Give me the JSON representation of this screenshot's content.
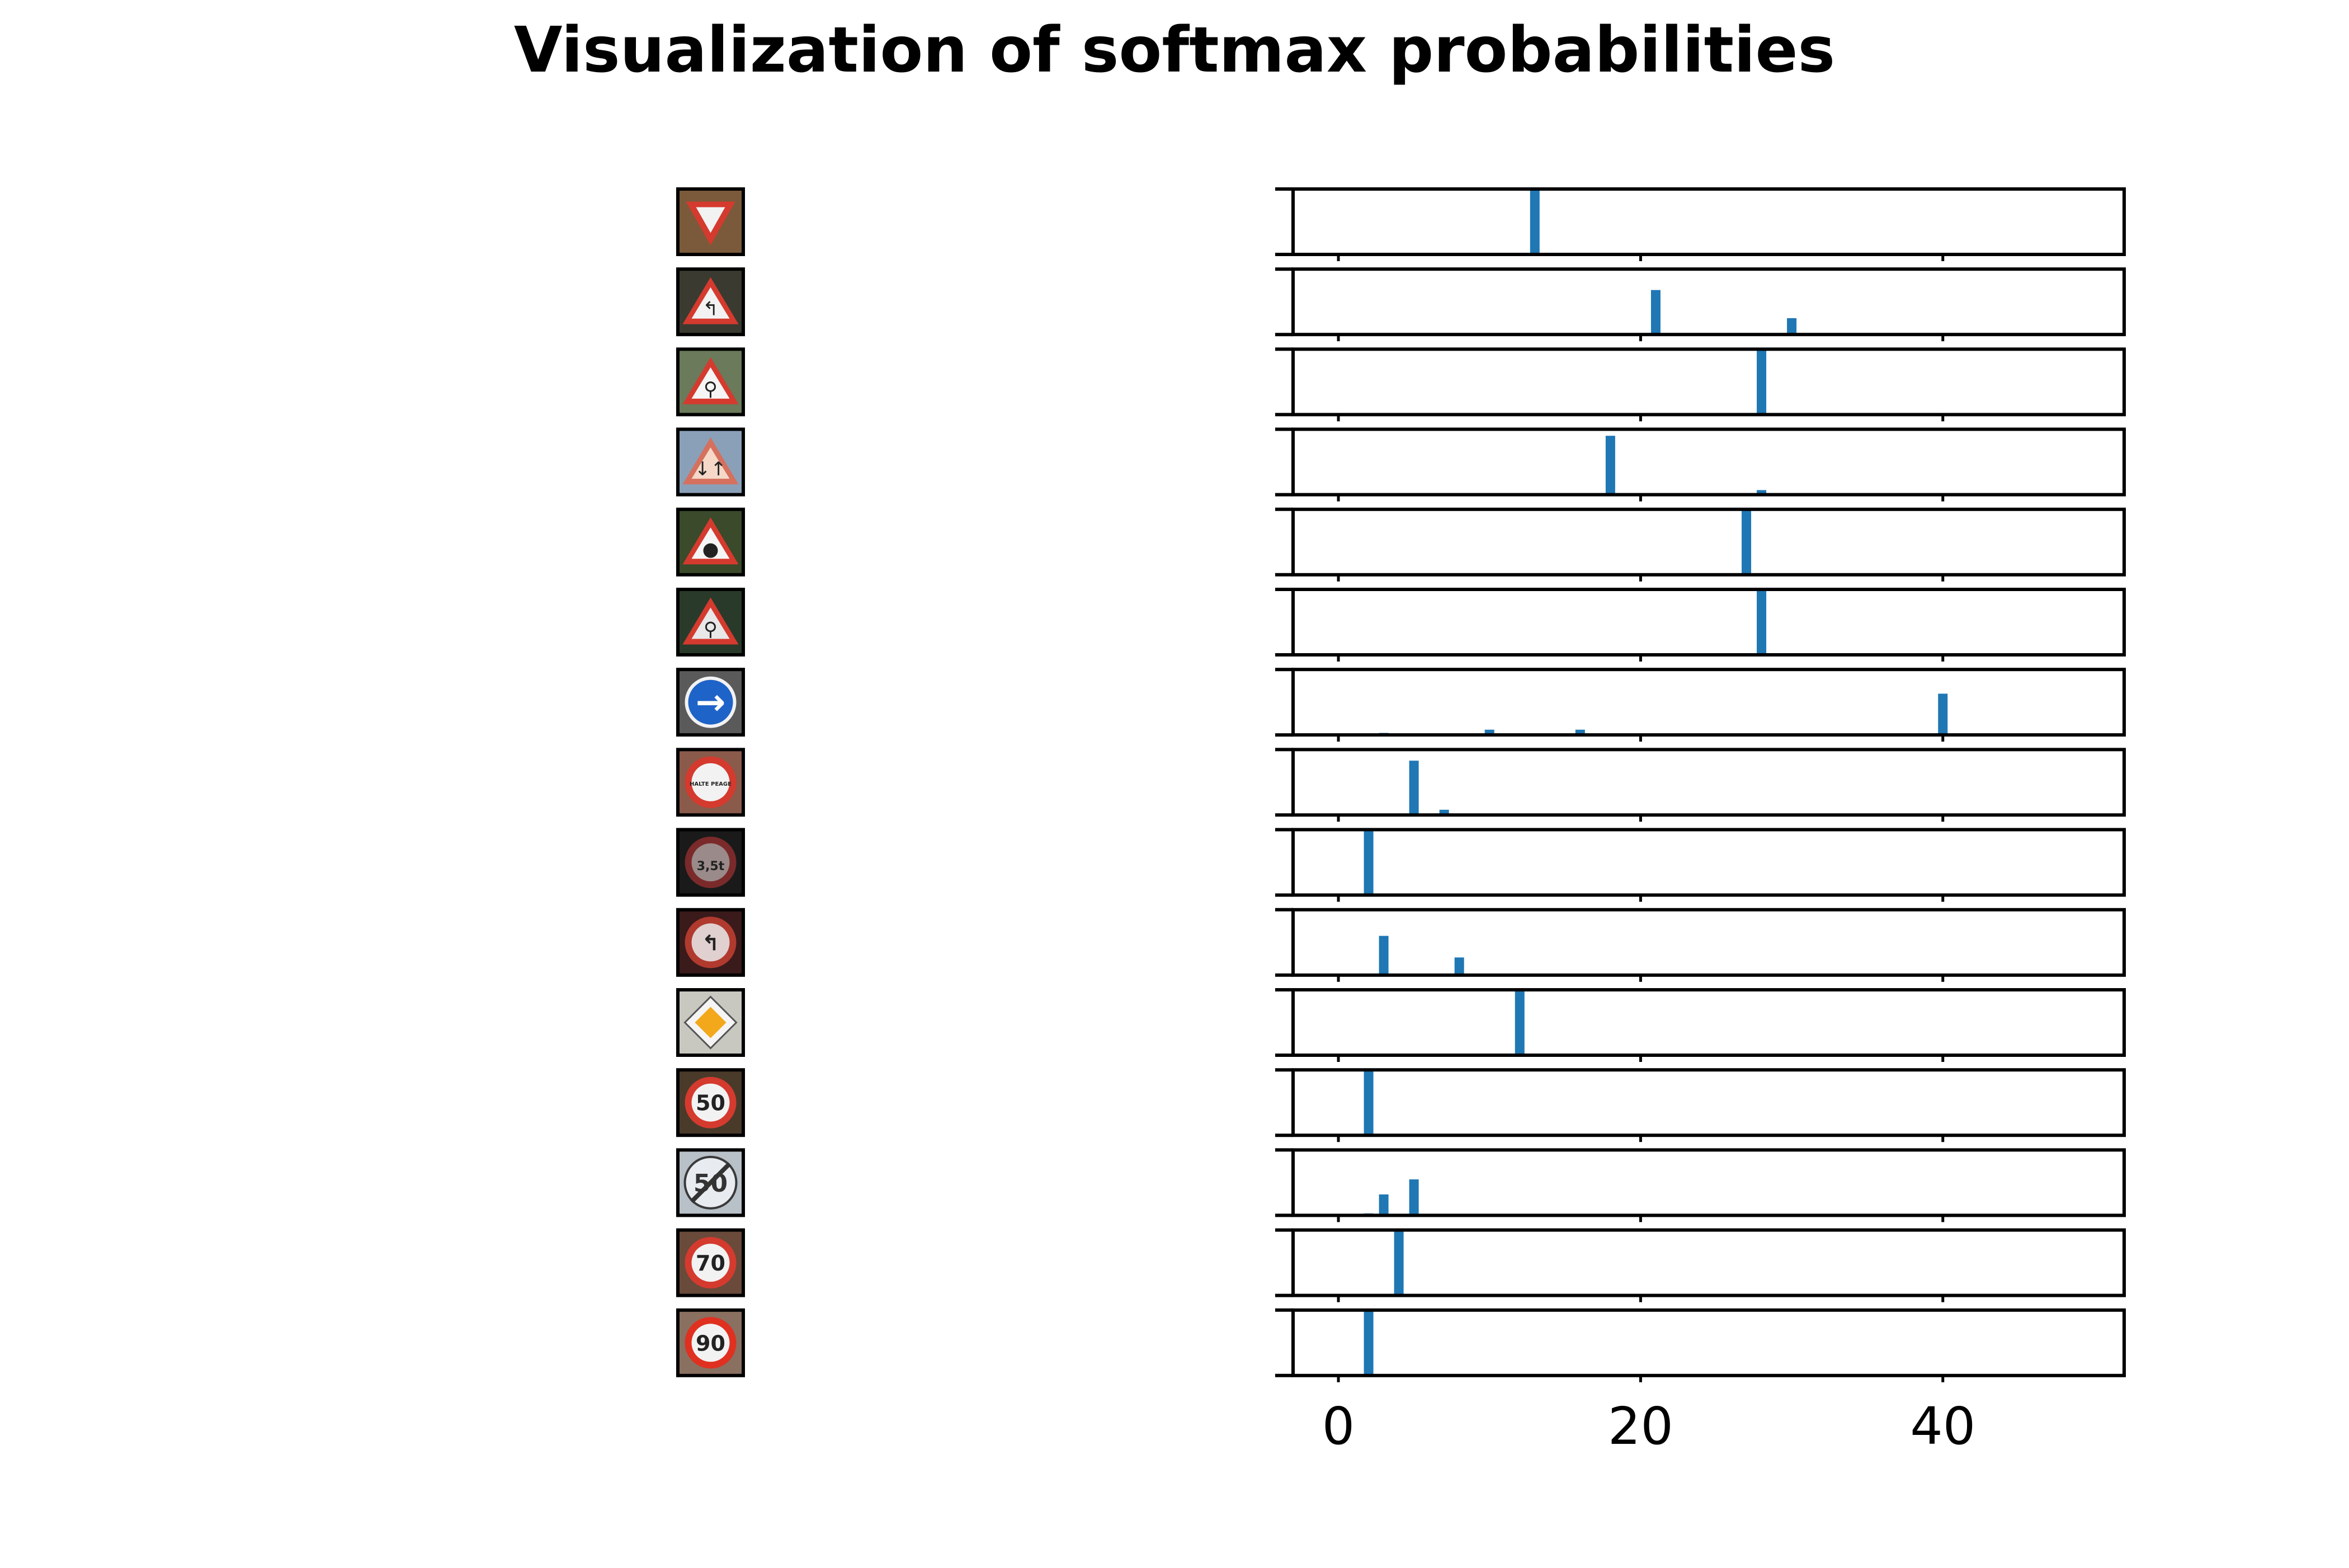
{
  "figure": {
    "title": "Visualization of softmax probabilities"
  },
  "chart_data": {
    "type": "bar",
    "title": "Visualization of softmax probabilities",
    "xlabel": "",
    "ylabel": "",
    "xlim": [
      -3,
      52
    ],
    "x_ticks": [
      0,
      20,
      40
    ],
    "x_tick_labels": [
      "0",
      "20",
      "40"
    ],
    "ylim": [
      0,
      1
    ],
    "grid": false,
    "legend": "none",
    "bar_color": "#1f77b4",
    "rows": [
      {
        "sign": "yield",
        "bars": [
          {
            "x": 13,
            "y": 1.0
          }
        ]
      },
      {
        "sign": "curve-left-warning",
        "bars": [
          {
            "x": 21,
            "y": 0.68
          },
          {
            "x": 30,
            "y": 0.25
          }
        ]
      },
      {
        "sign": "children-crossing-warning",
        "bars": [
          {
            "x": 28,
            "y": 1.0
          }
        ]
      },
      {
        "sign": "two-way-traffic-warning",
        "bars": [
          {
            "x": 18,
            "y": 0.9
          },
          {
            "x": 28,
            "y": 0.07
          }
        ]
      },
      {
        "sign": "traffic-signals-warning",
        "bars": [
          {
            "x": 27,
            "y": 1.0
          }
        ]
      },
      {
        "sign": "pedestrian-crossing-warning",
        "bars": [
          {
            "x": 28,
            "y": 1.0
          }
        ]
      },
      {
        "sign": "turn-right-ahead",
        "bars": [
          {
            "x": 40,
            "y": 0.63
          },
          {
            "x": 3,
            "y": 0.03
          },
          {
            "x": 10,
            "y": 0.08
          },
          {
            "x": 16,
            "y": 0.08
          }
        ]
      },
      {
        "sign": "halte-peage",
        "bars": [
          {
            "x": 5,
            "y": 0.83
          },
          {
            "x": 7,
            "y": 0.08
          }
        ]
      },
      {
        "sign": "weight-limit-3-5t",
        "bars": [
          {
            "x": 2,
            "y": 1.0
          }
        ]
      },
      {
        "sign": "no-left-turn",
        "bars": [
          {
            "x": 3,
            "y": 0.6
          },
          {
            "x": 8,
            "y": 0.27
          }
        ]
      },
      {
        "sign": "priority-road",
        "bars": [
          {
            "x": 12,
            "y": 1.0
          }
        ]
      },
      {
        "sign": "speed-limit-50",
        "bars": [
          {
            "x": 2,
            "y": 1.0
          }
        ]
      },
      {
        "sign": "end-speed-limit-50",
        "bars": [
          {
            "x": 3,
            "y": 0.32
          },
          {
            "x": 5,
            "y": 0.55
          },
          {
            "x": 2,
            "y": 0.03
          }
        ]
      },
      {
        "sign": "speed-limit-70",
        "bars": [
          {
            "x": 4,
            "y": 1.0
          }
        ]
      },
      {
        "sign": "speed-limit-90",
        "bars": [
          {
            "x": 2,
            "y": 1.0
          }
        ]
      }
    ]
  },
  "signs": [
    {
      "name": "yield-sign-icon",
      "shape": "inverted-triangle",
      "bg": "#7a5a3a",
      "fill": "#f2f2f2",
      "ring": "#d53a2e"
    },
    {
      "name": "curve-left-warning-sign-icon",
      "shape": "triangle",
      "bg": "#3a3a30",
      "fill": "#f2f2f2",
      "ring": "#d53a2e",
      "glyph": "↰"
    },
    {
      "name": "children-crossing-warning-sign-icon",
      "shape": "triangle",
      "bg": "#6a7a5a",
      "fill": "#f5f5f5",
      "ring": "#d53a2e",
      "glyph": "⚲"
    },
    {
      "name": "two-way-traffic-warning-sign-icon",
      "shape": "triangle",
      "bg": "#8aa0b8",
      "fill": "#f5d8c8",
      "ring": "#d5705e",
      "glyph": "↓↑"
    },
    {
      "name": "traffic-signals-warning-sign-icon",
      "shape": "triangle",
      "bg": "#3a4a2a",
      "fill": "#f5f5f5",
      "ring": "#d53a2e",
      "glyph": "●"
    },
    {
      "name": "pedestrian-crossing-warning-sign-icon",
      "shape": "triangle",
      "bg": "#2a3a2a",
      "fill": "#e8e8e8",
      "ring": "#d53a2e",
      "glyph": "⚲"
    },
    {
      "name": "turn-right-ahead-sign-icon",
      "shape": "blue-circle",
      "bg": "#5a5a5a",
      "fill": "#1e63c8",
      "ring": "#f2f2f2",
      "glyph": "→"
    },
    {
      "name": "halte-peage-sign-icon",
      "shape": "circle",
      "bg": "#8a5a4a",
      "fill": "#f2f2f2",
      "ring": "#d53a2e",
      "glyph": "HALTE PEAGE"
    },
    {
      "name": "weight-limit-sign-icon",
      "shape": "circle",
      "bg": "#1a1a1a",
      "fill": "#9a8a8a",
      "ring": "#7a2a2a",
      "glyph": "3,5t"
    },
    {
      "name": "no-left-turn-sign-icon",
      "shape": "circle",
      "bg": "#3a1a1a",
      "fill": "#e0d0d0",
      "ring": "#b03a2e",
      "glyph": "↰"
    },
    {
      "name": "priority-road-sign-icon",
      "shape": "diamond",
      "bg": "#c8c8c0",
      "fill": "#f2a81a",
      "ring": "#f5f5f5"
    },
    {
      "name": "speed-limit-50-sign-icon",
      "shape": "circle",
      "bg": "#4a3a2a",
      "fill": "#f2f2f2",
      "ring": "#d53a2e",
      "glyph": "50"
    },
    {
      "name": "end-speed-limit-50-sign-icon",
      "shape": "end-circle",
      "bg": "#b8c0c8",
      "fill": "#e8ecf0",
      "ring": "#3a3a3a",
      "glyph": "50"
    },
    {
      "name": "speed-limit-70-sign-icon",
      "shape": "circle",
      "bg": "#6a4a3a",
      "fill": "#f2f2f2",
      "ring": "#d53a2e",
      "glyph": "70"
    },
    {
      "name": "speed-limit-90-sign-icon",
      "shape": "circle",
      "bg": "#8a7060",
      "fill": "#f2f2f2",
      "ring": "#e03020",
      "glyph": "90"
    }
  ]
}
